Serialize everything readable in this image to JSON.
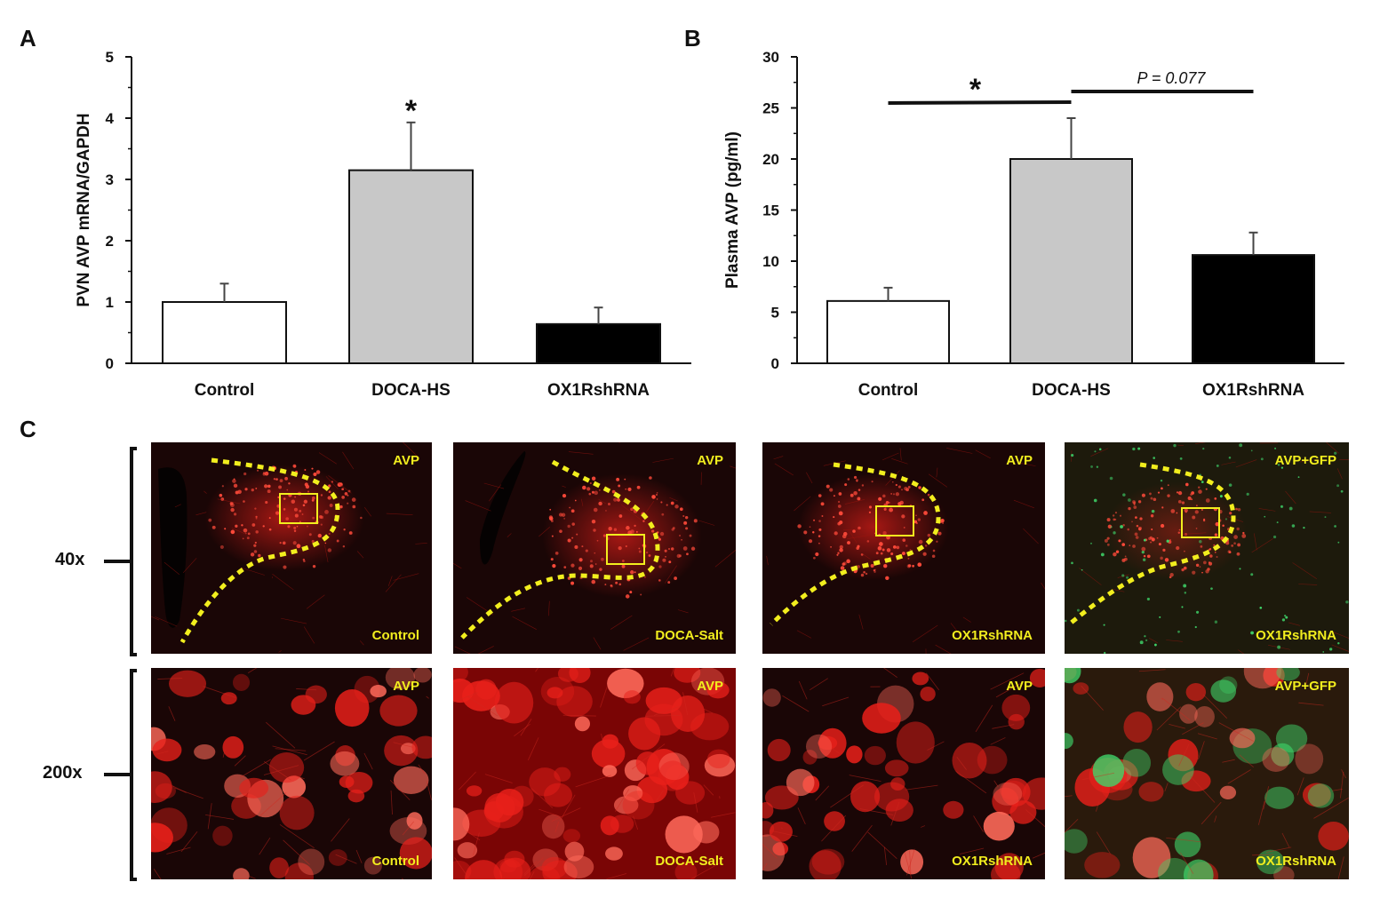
{
  "chart_data": [
    {
      "panel": "A",
      "type": "bar",
      "ylabel": "PVN AVP mRNA/GAPDH",
      "xlabel": "",
      "ylim": [
        0,
        5
      ],
      "yticks": [
        0,
        1,
        2,
        3,
        4,
        5
      ],
      "categories": [
        "Control",
        "DOCA-HS",
        "OX1RshRNA"
      ],
      "values": [
        1.0,
        3.15,
        0.64
      ],
      "errors": [
        0.3,
        0.78,
        0.27
      ],
      "fills": [
        "#ffffff",
        "#c8c8c8",
        "#000000"
      ],
      "annotations": [
        {
          "category": "DOCA-HS",
          "text": "*"
        }
      ],
      "grid": false
    },
    {
      "panel": "B",
      "type": "bar",
      "ylabel": "Plasma AVP (pg/ml)",
      "xlabel": "",
      "ylim": [
        0,
        30
      ],
      "yticks": [
        0,
        5,
        10,
        15,
        20,
        25,
        30
      ],
      "categories": [
        "Control",
        "DOCA-HS",
        "OX1RshRNA"
      ],
      "values": [
        6.1,
        20.0,
        10.6
      ],
      "errors": [
        1.3,
        4.0,
        2.2
      ],
      "fills": [
        "#ffffff",
        "#c8c8c8",
        "#000000"
      ],
      "comparisons": [
        {
          "from": "Control",
          "to": "DOCA-HS",
          "label": "*"
        },
        {
          "from": "DOCA-HS",
          "to": "OX1RshRNA",
          "label": "P = 0.077"
        }
      ],
      "grid": false
    }
  ],
  "panel_c": {
    "letter": "C",
    "rows": [
      {
        "magnification": "40x",
        "tiles": [
          {
            "top_label": "AVP",
            "bottom_label": "Control",
            "stain": "red"
          },
          {
            "top_label": "AVP",
            "bottom_label": "DOCA-Salt",
            "stain": "red"
          },
          {
            "top_label": "AVP",
            "bottom_label": "OX1RshRNA",
            "stain": "red"
          },
          {
            "top_label": "AVP+GFP",
            "bottom_label": "OX1RshRNA",
            "stain": "red+green"
          }
        ]
      },
      {
        "magnification": "200x",
        "tiles": [
          {
            "top_label": "AVP",
            "bottom_label": "Control",
            "stain": "red"
          },
          {
            "top_label": "AVP",
            "bottom_label": "DOCA-Salt",
            "stain": "red"
          },
          {
            "top_label": "AVP",
            "bottom_label": "OX1RshRNA",
            "stain": "red"
          },
          {
            "top_label": "AVP+GFP",
            "bottom_label": "OX1RshRNA",
            "stain": "red+green"
          }
        ]
      }
    ]
  },
  "colors": {
    "outline": "#f2ee1e",
    "avp_red": "#e8201a",
    "gfp_green": "#3fd66a"
  }
}
